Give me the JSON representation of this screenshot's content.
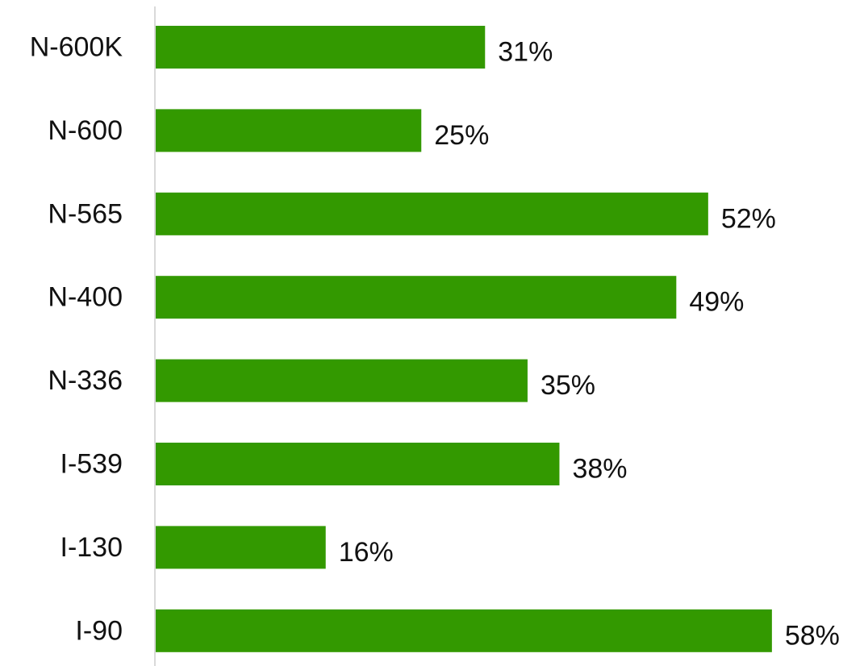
{
  "chart_data": {
    "type": "bar",
    "orientation": "horizontal",
    "categories": [
      "N-600K",
      "N-600",
      "N-565",
      "N-400",
      "N-336",
      "I-539",
      "I-130",
      "I-90"
    ],
    "values": [
      31,
      25,
      52,
      49,
      35,
      38,
      16,
      58
    ],
    "value_format": "{v}%",
    "title": "",
    "xlabel": "",
    "ylabel": "",
    "xlim": [
      0,
      58
    ],
    "grid": false,
    "legend": "none",
    "bar_color": "#339900",
    "axis_color": "#d9d9d9",
    "text_color": "#111111"
  }
}
